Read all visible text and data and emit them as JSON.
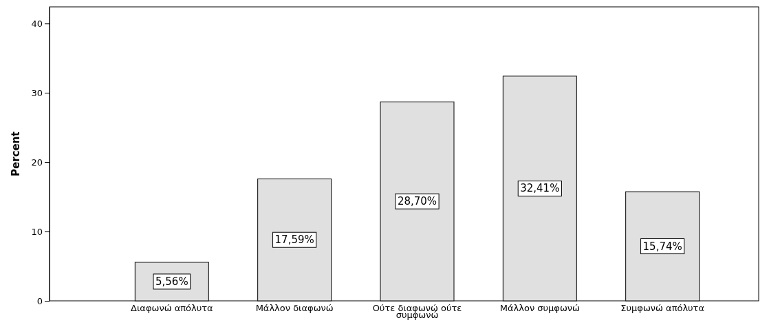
{
  "chart_data": {
    "type": "bar",
    "ylabel": "Percent",
    "categories": [
      "Διαφωνώ απόλυτα",
      "Μάλλον διαφωνώ",
      "Ούτε διαφωνώ ούτε συμφωνώ",
      "Μάλλον συμφωνώ",
      "Συμφωνώ απόλυτα"
    ],
    "values": [
      5.56,
      17.59,
      28.7,
      32.41,
      15.74
    ],
    "value_labels": [
      "5,56%",
      "17,59%",
      "28,70%",
      "32,41%",
      "15,74%"
    ],
    "color": "#e0e0e0",
    "ylim": [
      0,
      42.4
    ],
    "yticks": [
      0,
      10,
      20,
      30,
      40
    ],
    "grid": false
  }
}
